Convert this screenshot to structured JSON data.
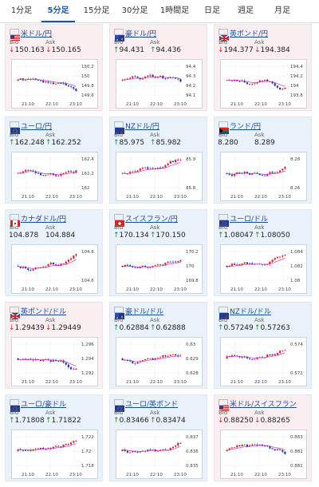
{
  "tabs": [
    "1分足",
    "5分足",
    "15分足",
    "30分足",
    "1時間足",
    "日足",
    "週足",
    "月足"
  ],
  "active_tab": 1,
  "bid_label": "Bid",
  "ask_label": "Ask",
  "colors": {
    "up_candle": "#e8202a",
    "down_candle": "#1c3aa8",
    "ma_line": "#c63cc6",
    "down_card": "#fbeef0",
    "up_card": "#e9f2fb",
    "arrow_down": "#d2262b",
    "arrow_up": "#1f8f2b"
  },
  "cards": [
    {
      "title": "米ドル/円",
      "flag": "us",
      "trend": "down",
      "bid": "150.163",
      "ask": "150.165",
      "arrow": "down",
      "yticks": [
        "150.2",
        "150",
        "149.8",
        "149.6"
      ],
      "xticks": [
        "21:10",
        "22:10",
        "23:10"
      ]
    },
    {
      "title": "豪ドル/円",
      "flag": "au",
      "trend": "down",
      "bid": "94.431",
      "ask": "94.436",
      "arrow": "up",
      "yticks": [
        "94.4",
        "94.3",
        "94.2",
        "94.1"
      ],
      "xticks": [
        "21:10",
        "22:10",
        "23:10"
      ]
    },
    {
      "title": "英ポンド/円",
      "flag": "gb",
      "trend": "down",
      "bid": "194.377",
      "ask": "194.384",
      "arrow": "down",
      "yticks": [
        "194.4",
        "194.2",
        "194",
        "193.8"
      ],
      "xticks": [
        "21:10",
        "22:10",
        "23:10"
      ]
    },
    {
      "title": "ユーロ/円",
      "flag": "eu",
      "trend": "up",
      "bid": "162.248",
      "ask": "162.252",
      "arrow": "up",
      "yticks": [
        "162.4",
        "162.2",
        "162"
      ],
      "xticks": [
        "21:10",
        "22:10",
        "23:10"
      ]
    },
    {
      "title": "NZドル/円",
      "flag": "nz",
      "trend": "up",
      "bid": "85.975",
      "ask": "85.982",
      "arrow": "up",
      "yticks": [
        "85.9",
        "85.8"
      ],
      "xticks": [
        "21:10",
        "22:10",
        "23:10"
      ]
    },
    {
      "title": "ランド/円",
      "flag": "za",
      "trend": "up",
      "bid": "8.280",
      "ask": "8.289",
      "arrow": "",
      "yticks": [
        "8.28",
        "8.26"
      ],
      "xticks": [
        "21:10",
        "22:10",
        "23:10"
      ]
    },
    {
      "title": "カナダドル/円",
      "flag": "ca",
      "trend": "up",
      "bid": "104.878",
      "ask": "104.884",
      "arrow": "",
      "yticks": [
        "104.8",
        "104.6"
      ],
      "xticks": [
        "21:10",
        "22:10",
        "23:10"
      ]
    },
    {
      "title": "スイスフラン/円",
      "flag": "ch",
      "trend": "up",
      "bid": "170.134",
      "ask": "170.150",
      "arrow": "up",
      "yticks": [
        "170.2",
        "170",
        "169.8"
      ],
      "xticks": [
        "21:10",
        "22:10",
        "23:10"
      ]
    },
    {
      "title": "ユーロ/ドル",
      "flag": "eu",
      "trend": "up",
      "bid": "1.08047",
      "ask": "1.08050",
      "arrow": "up",
      "yticks": [
        "1.084",
        "1.082",
        "1.08"
      ],
      "xticks": [
        "21:10",
        "22:10",
        "23:10"
      ]
    },
    {
      "title": "英ポンド/ドル",
      "flag": "gb",
      "trend": "down",
      "bid": "1.29439",
      "ask": "1.29449",
      "arrow": "down",
      "yticks": [
        "1.296",
        "1.294",
        "1.292"
      ],
      "xticks": [
        "21:10",
        "22:10",
        "23:10"
      ]
    },
    {
      "title": "豪ドル/ドル",
      "flag": "au",
      "trend": "up",
      "bid": "0.62884",
      "ask": "0.62888",
      "arrow": "up",
      "yticks": [
        "0.63",
        "0.629",
        "0.628"
      ],
      "xticks": [
        "21:10",
        "22:10",
        "23:10"
      ]
    },
    {
      "title": "NZドル/ドル",
      "flag": "nz",
      "trend": "up",
      "bid": "0.57249",
      "ask": "0.57263",
      "arrow": "up",
      "yticks": [
        "0.574",
        "0.572"
      ],
      "xticks": [
        "21:10",
        "22:10",
        "23:10"
      ]
    },
    {
      "title": "ユーロ/豪ドル",
      "flag": "eu",
      "trend": "up",
      "bid": "1.71808",
      "ask": "1.71822",
      "arrow": "up",
      "yticks": [
        "1.722",
        "1.72",
        "1.718"
      ],
      "xticks": [
        "21:10",
        "22:10",
        "23:10"
      ]
    },
    {
      "title": "ユーロ/英ポンド",
      "flag": "eu",
      "trend": "up",
      "bid": "0.83466",
      "ask": "0.83474",
      "arrow": "up",
      "yticks": [
        "0.837",
        "0.836",
        "0.835"
      ],
      "xticks": [
        "21:10",
        "22:10",
        "23:10"
      ]
    },
    {
      "title": "米ドル/スイスフラン",
      "flag": "us",
      "trend": "down",
      "bid": "0.88250",
      "ask": "0.88265",
      "arrow": "down",
      "yticks": [
        "0.883",
        "0.882",
        "0.881"
      ],
      "xticks": [
        "21:10",
        "22:10",
        "23:10"
      ]
    }
  ]
}
